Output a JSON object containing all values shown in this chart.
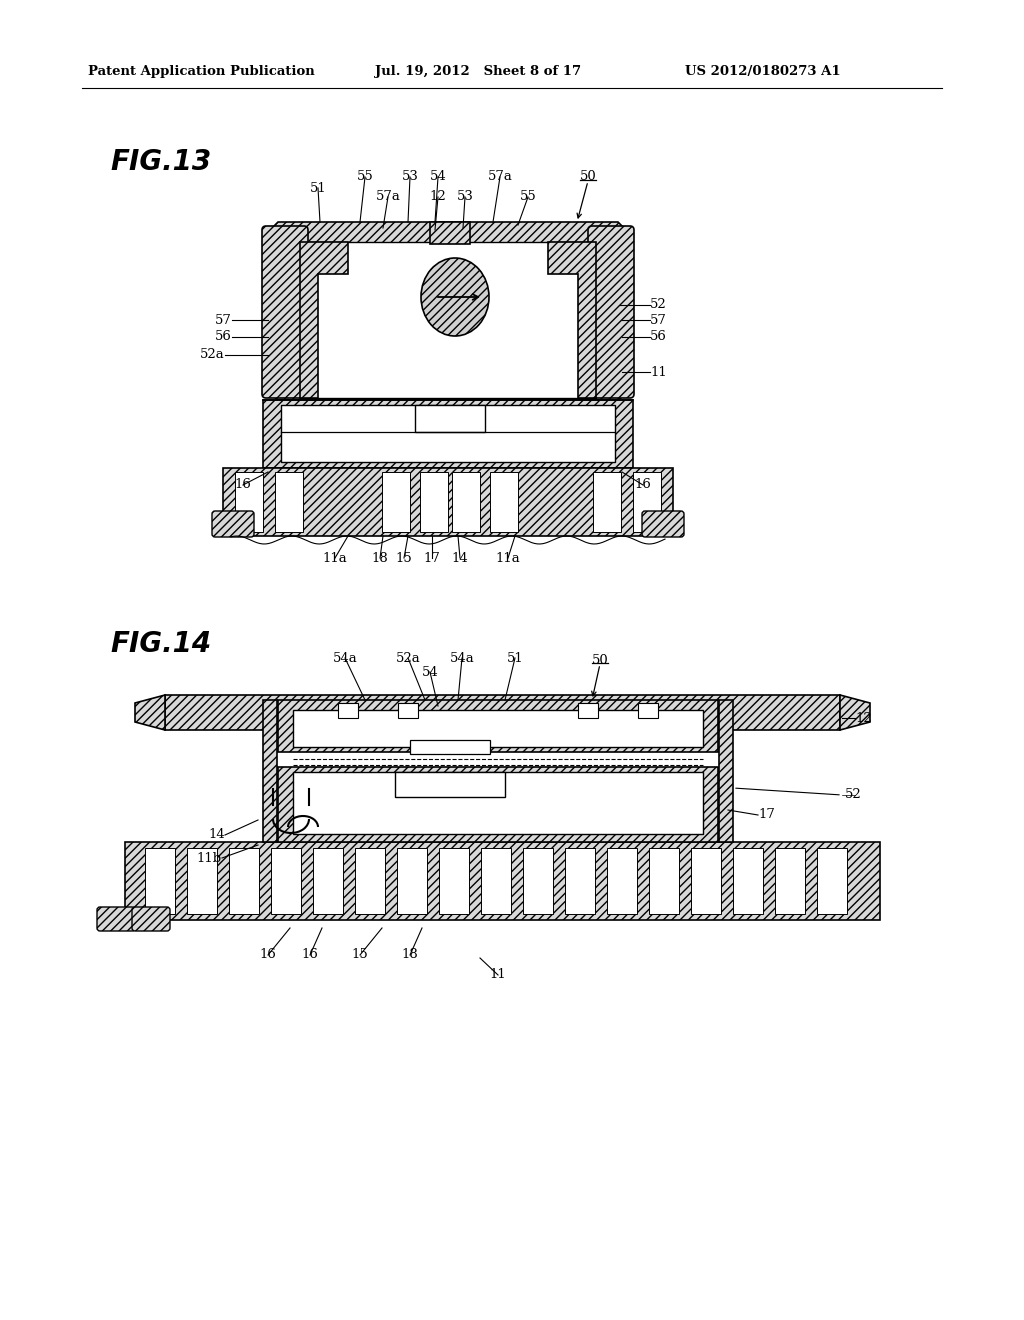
{
  "background_color": "#ffffff",
  "header_left": "Patent Application Publication",
  "header_center": "Jul. 19, 2012   Sheet 8 of 17",
  "header_right": "US 2012/0180273 A1",
  "fig13_label": "FIG.13",
  "fig14_label": "FIG.14",
  "line_color": "#000000",
  "hatch_color": "#404040",
  "fill_light": "#d8d8d8",
  "fill_white": "#ffffff"
}
